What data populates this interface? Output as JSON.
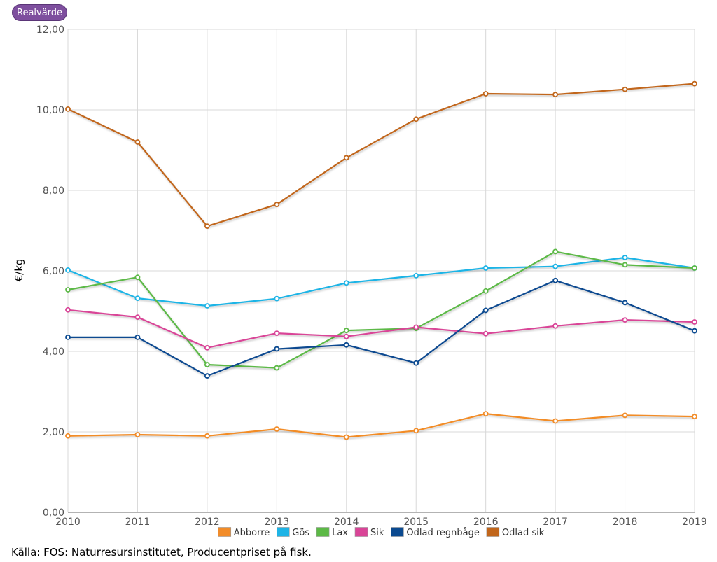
{
  "toggle": {
    "label": "Realvärde"
  },
  "source_text": "Källa: FOS: Naturresursinstitutet, Producentpriset på fisk.",
  "chart_data": {
    "type": "line",
    "title": "",
    "xlabel": "",
    "ylabel": "€/kg",
    "x": [
      "2010",
      "2011",
      "2012",
      "2013",
      "2014",
      "2015",
      "2016",
      "2017",
      "2018",
      "2019"
    ],
    "ylim": [
      0,
      12
    ],
    "yticks": [
      "0,00",
      "2,00",
      "4,00",
      "6,00",
      "8,00",
      "10,00",
      "12,00"
    ],
    "grid": true,
    "legend_position": "bottom",
    "series": [
      {
        "name": "Abborre",
        "color": "#f28c28",
        "values": [
          1.9,
          1.93,
          1.9,
          2.07,
          1.87,
          2.03,
          2.45,
          2.27,
          2.41,
          2.38
        ]
      },
      {
        "name": "Gös",
        "color": "#1eb4e6",
        "values": [
          6.02,
          5.32,
          5.13,
          5.31,
          5.7,
          5.88,
          6.07,
          6.11,
          6.33,
          6.07
        ]
      },
      {
        "name": "Lax",
        "color": "#5cb946",
        "values": [
          5.53,
          5.84,
          3.67,
          3.59,
          4.52,
          4.57,
          5.5,
          6.48,
          6.15,
          6.07
        ]
      },
      {
        "name": "Sik",
        "color": "#d94497",
        "values": [
          5.03,
          4.85,
          4.09,
          4.45,
          4.37,
          4.6,
          4.44,
          4.63,
          4.78,
          4.73
        ]
      },
      {
        "name": "Odlad regnbåge",
        "color": "#0b4a90",
        "values": [
          4.35,
          4.35,
          3.39,
          4.06,
          4.16,
          3.71,
          5.02,
          5.76,
          5.21,
          4.51
        ]
      },
      {
        "name": "Odlad sik",
        "color": "#c1661b",
        "values": [
          10.02,
          9.2,
          7.11,
          7.65,
          8.81,
          9.77,
          10.4,
          10.38,
          10.51,
          10.65
        ]
      }
    ]
  }
}
